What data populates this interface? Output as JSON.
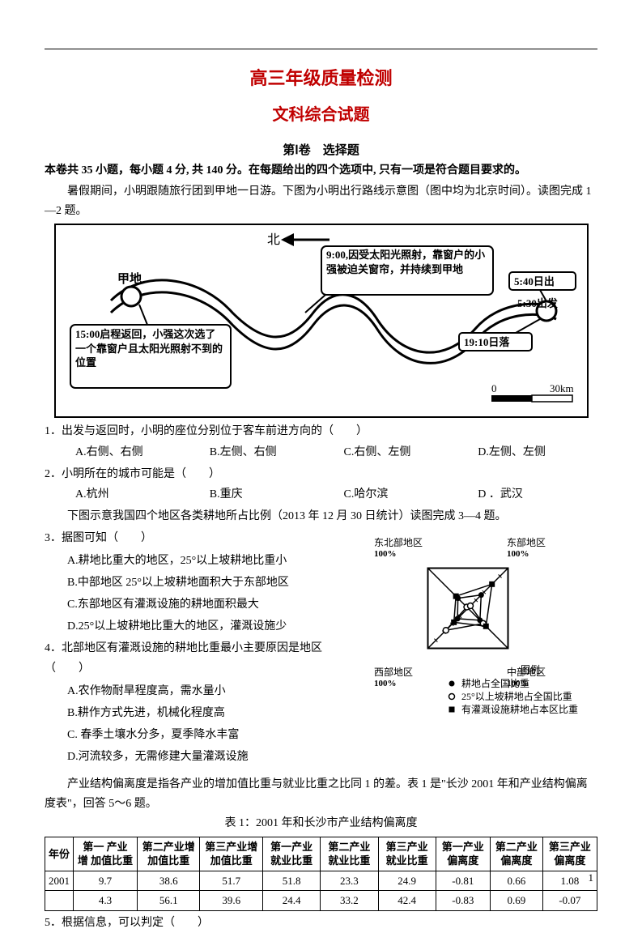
{
  "title_main": "高三年级质量检测",
  "title_sub": "文科综合试题",
  "section_head": "第Ⅰ卷　选择题",
  "instruction": "本卷共 35 小题，每小题 4 分, 共 140 分。在每题给出的四个选项中, 只有一项是符合题目要求的。",
  "intro_1": "暑假期间，小明跟随旅行团到甲地一日游。下图为小明出行路线示意图（图中均为北京时间）。读图完成 1—2 题。",
  "map": {
    "north_label": "北",
    "place_jia": "甲地",
    "box_9": "9:00,因受太阳光照射，靠窗户的小强被迫关窗帘，并持续到甲地",
    "box_15": "15:00启程返回，小强这次选了一个靠窗户且太阳光照射不到的位置",
    "sunrise": "5:40日出",
    "depart": "5:30出发",
    "sunset": "19:10日落",
    "scale_0": "0",
    "scale_30": "30km"
  },
  "q1": {
    "stem": "1．出发与返回时，小明的座位分别位于客车前进方向的（　　）",
    "A": "A.右侧、右侧",
    "B": "B.左侧、右侧",
    "C": "C.右侧、左侧",
    "D": "D.左侧、左侧"
  },
  "q2": {
    "stem": "2．小明所在的城市可能是（　　）",
    "A": "A.杭州",
    "B": "B.重庆",
    "C": "C.哈尔滨",
    "D": "D ．武汉"
  },
  "intro_2": "下图示意我国四个地区各类耕地所占比例（2013 年 12 月 30 日统计）读图完成 3—4 题。",
  "q3": {
    "stem": "3．据图可知（　　）",
    "A": "A.耕地比重大的地区，25°以上坡耕地比重小",
    "B": "B.中部地区 25°以上坡耕地面积大于东部地区",
    "C": "C.东部地区有灌溉设施的耕地面积最大",
    "D": "D.25°以上坡耕地比重大的地区，灌溉设施少"
  },
  "q4": {
    "stem": "4．北部地区有灌溉设施的耕地比重最小主要原因是地区（　　）",
    "A": "A.农作物耐旱程度高，需水量小",
    "B": "B.耕作方式先进，机械化程度高",
    "C": "C. 春季土壤水分多，夏季降水丰富",
    "D": "D.河流较多，无需修建大量灌溉设施"
  },
  "radar": {
    "axes": [
      "东北部地区",
      "东部地区",
      "中部地区",
      "西部地区"
    ],
    "axis_pct": "100%",
    "legend_title": "图例",
    "legend1": "耕地占全国比重",
    "legend2": "25°以上坡耕地占全国比重",
    "legend3": "有灌溉设施耕地占本区比重",
    "series": [
      {
        "marker": "dot",
        "points": [
          0.25,
          0.33,
          0.3,
          0.26
        ]
      },
      {
        "marker": "circle",
        "points": [
          0.03,
          0.06,
          0.38,
          0.55
        ]
      },
      {
        "marker": "square",
        "points": [
          0.3,
          0.6,
          0.45,
          0.35
        ]
      }
    ],
    "line_color": "#000000",
    "bg_color": "#ffffff"
  },
  "intro_3": "产业结构偏离度是指各产业的增加值比重与就业比重之比同 1 的差。表 1 是\"长沙 2001 年和产业结构偏离度表\"，回答 5～6 题。",
  "table_caption": "表 1：2001 年和长沙市产业结构偏离度",
  "table": {
    "headers": [
      "年份",
      "第一 产业 增 加值比重",
      "第二产业增加值比重",
      "第三产业增加值比重",
      "第一产业就业比重",
      "第二产业就业比重",
      "第三产业就业比重",
      "第一产业偏离度",
      "第二产业偏离度",
      "第三产业偏离度"
    ],
    "rows": [
      [
        "2001",
        "9.7",
        "38.6",
        "51.7",
        "51.8",
        "23.3",
        "24.9",
        "-0.81",
        "0.66",
        "1.08"
      ],
      [
        "",
        "4.3",
        "56.1",
        "39.6",
        "24.4",
        "33.2",
        "42.4",
        "-0.83",
        "0.69",
        "-0.07"
      ]
    ]
  },
  "q5": "5．根据信息，可以判定（　　）",
  "page_num": "1"
}
